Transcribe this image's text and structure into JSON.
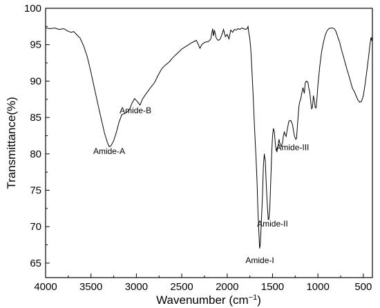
{
  "chart_data": {
    "type": "line",
    "xlabel_main": "Wavenumber (cm",
    "xlabel_sup": "−1",
    "xlabel_end": ")",
    "ylabel": "Transmittance(%)",
    "xlim": [
      4000,
      400
    ],
    "ylim": [
      63,
      100
    ],
    "x_ticks": [
      4000,
      3500,
      3000,
      2500,
      2000,
      1500,
      1000,
      500
    ],
    "y_ticks": [
      65,
      70,
      75,
      80,
      85,
      90,
      95,
      100
    ],
    "grid": false,
    "line_color": "#000000",
    "series": [
      {
        "points": [
          [
            4000,
            97.3
          ],
          [
            3950,
            97.2
          ],
          [
            3900,
            97.3
          ],
          [
            3850,
            97.1
          ],
          [
            3800,
            97.2
          ],
          [
            3760,
            96.9
          ],
          [
            3720,
            96.7
          ],
          [
            3690,
            96.8
          ],
          [
            3660,
            96.4
          ],
          [
            3620,
            95.9
          ],
          [
            3580,
            94.8
          ],
          [
            3540,
            93.3
          ],
          [
            3500,
            91.2
          ],
          [
            3460,
            88.9
          ],
          [
            3420,
            86.6
          ],
          [
            3380,
            84.4
          ],
          [
            3350,
            82.8
          ],
          [
            3320,
            81.6
          ],
          [
            3300,
            81.0
          ],
          [
            3280,
            81.1
          ],
          [
            3250,
            81.8
          ],
          [
            3220,
            83.0
          ],
          [
            3190,
            84.4
          ],
          [
            3160,
            85.4
          ],
          [
            3120,
            85.6
          ],
          [
            3080,
            86.0
          ],
          [
            3050,
            86.9
          ],
          [
            3020,
            87.6
          ],
          [
            2990,
            87.2
          ],
          [
            2960,
            86.7
          ],
          [
            2930,
            87.6
          ],
          [
            2890,
            88.3
          ],
          [
            2850,
            89.0
          ],
          [
            2800,
            89.8
          ],
          [
            2760,
            90.8
          ],
          [
            2720,
            91.7
          ],
          [
            2680,
            92.2
          ],
          [
            2640,
            92.6
          ],
          [
            2600,
            93.2
          ],
          [
            2550,
            93.8
          ],
          [
            2500,
            94.4
          ],
          [
            2450,
            94.8
          ],
          [
            2400,
            95.2
          ],
          [
            2370,
            95.4
          ],
          [
            2340,
            95.6
          ],
          [
            2320,
            95.1
          ],
          [
            2300,
            94.5
          ],
          [
            2280,
            95.0
          ],
          [
            2250,
            95.3
          ],
          [
            2220,
            95.4
          ],
          [
            2200,
            95.5
          ],
          [
            2180,
            95.8
          ],
          [
            2160,
            97.2
          ],
          [
            2150,
            96.2
          ],
          [
            2140,
            97.0
          ],
          [
            2120,
            95.9
          ],
          [
            2100,
            95.6
          ],
          [
            2080,
            95.7
          ],
          [
            2060,
            96.3
          ],
          [
            2040,
            97.1
          ],
          [
            2020,
            96.1
          ],
          [
            2000,
            96.4
          ],
          [
            1980,
            95.8
          ],
          [
            1960,
            97.0
          ],
          [
            1940,
            96.7
          ],
          [
            1920,
            97.1
          ],
          [
            1900,
            97.0
          ],
          [
            1880,
            97.2
          ],
          [
            1860,
            97.1
          ],
          [
            1840,
            97.3
          ],
          [
            1820,
            97.2
          ],
          [
            1800,
            97.1
          ],
          [
            1780,
            97.2
          ],
          [
            1770,
            97.5
          ],
          [
            1760,
            96.5
          ],
          [
            1750,
            95.8
          ],
          [
            1740,
            94.5
          ],
          [
            1725,
            91.0
          ],
          [
            1710,
            87.0
          ],
          [
            1700,
            84.0
          ],
          [
            1690,
            81.5
          ],
          [
            1680,
            79.0
          ],
          [
            1670,
            76.0
          ],
          [
            1660,
            72.0
          ],
          [
            1650,
            69.0
          ],
          [
            1642,
            67.0
          ],
          [
            1635,
            67.5
          ],
          [
            1625,
            70.0
          ],
          [
            1612,
            74.0
          ],
          [
            1600,
            78.5
          ],
          [
            1590,
            80.0
          ],
          [
            1580,
            79.0
          ],
          [
            1570,
            76.0
          ],
          [
            1560,
            73.5
          ],
          [
            1548,
            71.0
          ],
          [
            1540,
            71.0
          ],
          [
            1530,
            72.5
          ],
          [
            1520,
            76.0
          ],
          [
            1510,
            80.0
          ],
          [
            1500,
            82.5
          ],
          [
            1490,
            83.5
          ],
          [
            1480,
            83.0
          ],
          [
            1470,
            81.5
          ],
          [
            1460,
            80.5
          ],
          [
            1452,
            80.3
          ],
          [
            1440,
            81.0
          ],
          [
            1430,
            82.0
          ],
          [
            1420,
            81.5
          ],
          [
            1405,
            81.0
          ],
          [
            1390,
            81.5
          ],
          [
            1380,
            82.5
          ],
          [
            1370,
            83.0
          ],
          [
            1360,
            82.6
          ],
          [
            1350,
            82.4
          ],
          [
            1340,
            83.2
          ],
          [
            1320,
            84.5
          ],
          [
            1300,
            84.6
          ],
          [
            1280,
            84.0
          ],
          [
            1260,
            82.5
          ],
          [
            1245,
            82.0
          ],
          [
            1236,
            82.1
          ],
          [
            1225,
            84.0
          ],
          [
            1210,
            86.5
          ],
          [
            1200,
            87.2
          ],
          [
            1190,
            87.5
          ],
          [
            1180,
            88.2
          ],
          [
            1165,
            89.1
          ],
          [
            1150,
            88.3
          ],
          [
            1140,
            89.8
          ],
          [
            1125,
            90.0
          ],
          [
            1110,
            89.8
          ],
          [
            1100,
            89.0
          ],
          [
            1090,
            88.5
          ],
          [
            1080,
            87.2
          ],
          [
            1070,
            86.2
          ],
          [
            1060,
            86.4
          ],
          [
            1050,
            88.0
          ],
          [
            1040,
            87.4
          ],
          [
            1030,
            86.4
          ],
          [
            1020,
            86.3
          ],
          [
            1010,
            87.8
          ],
          [
            1000,
            89.5
          ],
          [
            980,
            92.0
          ],
          [
            960,
            94.0
          ],
          [
            940,
            95.3
          ],
          [
            920,
            96.3
          ],
          [
            900,
            96.9
          ],
          [
            880,
            97.2
          ],
          [
            860,
            97.3
          ],
          [
            840,
            97.3
          ],
          [
            820,
            97.2
          ],
          [
            800,
            96.8
          ],
          [
            780,
            96.0
          ],
          [
            760,
            95.3
          ],
          [
            740,
            94.3
          ],
          [
            720,
            93.4
          ],
          [
            700,
            92.5
          ],
          [
            680,
            91.6
          ],
          [
            660,
            90.8
          ],
          [
            640,
            89.9
          ],
          [
            620,
            89.0
          ],
          [
            600,
            88.6
          ],
          [
            580,
            88.0
          ],
          [
            560,
            87.4
          ],
          [
            540,
            87.1
          ],
          [
            520,
            87.2
          ],
          [
            500,
            88.0
          ],
          [
            480,
            89.6
          ],
          [
            460,
            91.5
          ],
          [
            440,
            93.5
          ],
          [
            425,
            95.2
          ],
          [
            415,
            96.0
          ],
          [
            405,
            95.5
          ],
          [
            400,
            96.3
          ]
        ]
      }
    ],
    "annotations": [
      {
        "text": "Amide-A",
        "x": 3300,
        "y": 80.0
      },
      {
        "text": "Amide-B",
        "x": 3010,
        "y": 85.6
      },
      {
        "text": "Amide-I",
        "x": 1640,
        "y": 65.0
      },
      {
        "text": "Amide-II",
        "x": 1500,
        "y": 70.0
      },
      {
        "text": "Amide-III",
        "x": 1280,
        "y": 80.5
      }
    ]
  }
}
